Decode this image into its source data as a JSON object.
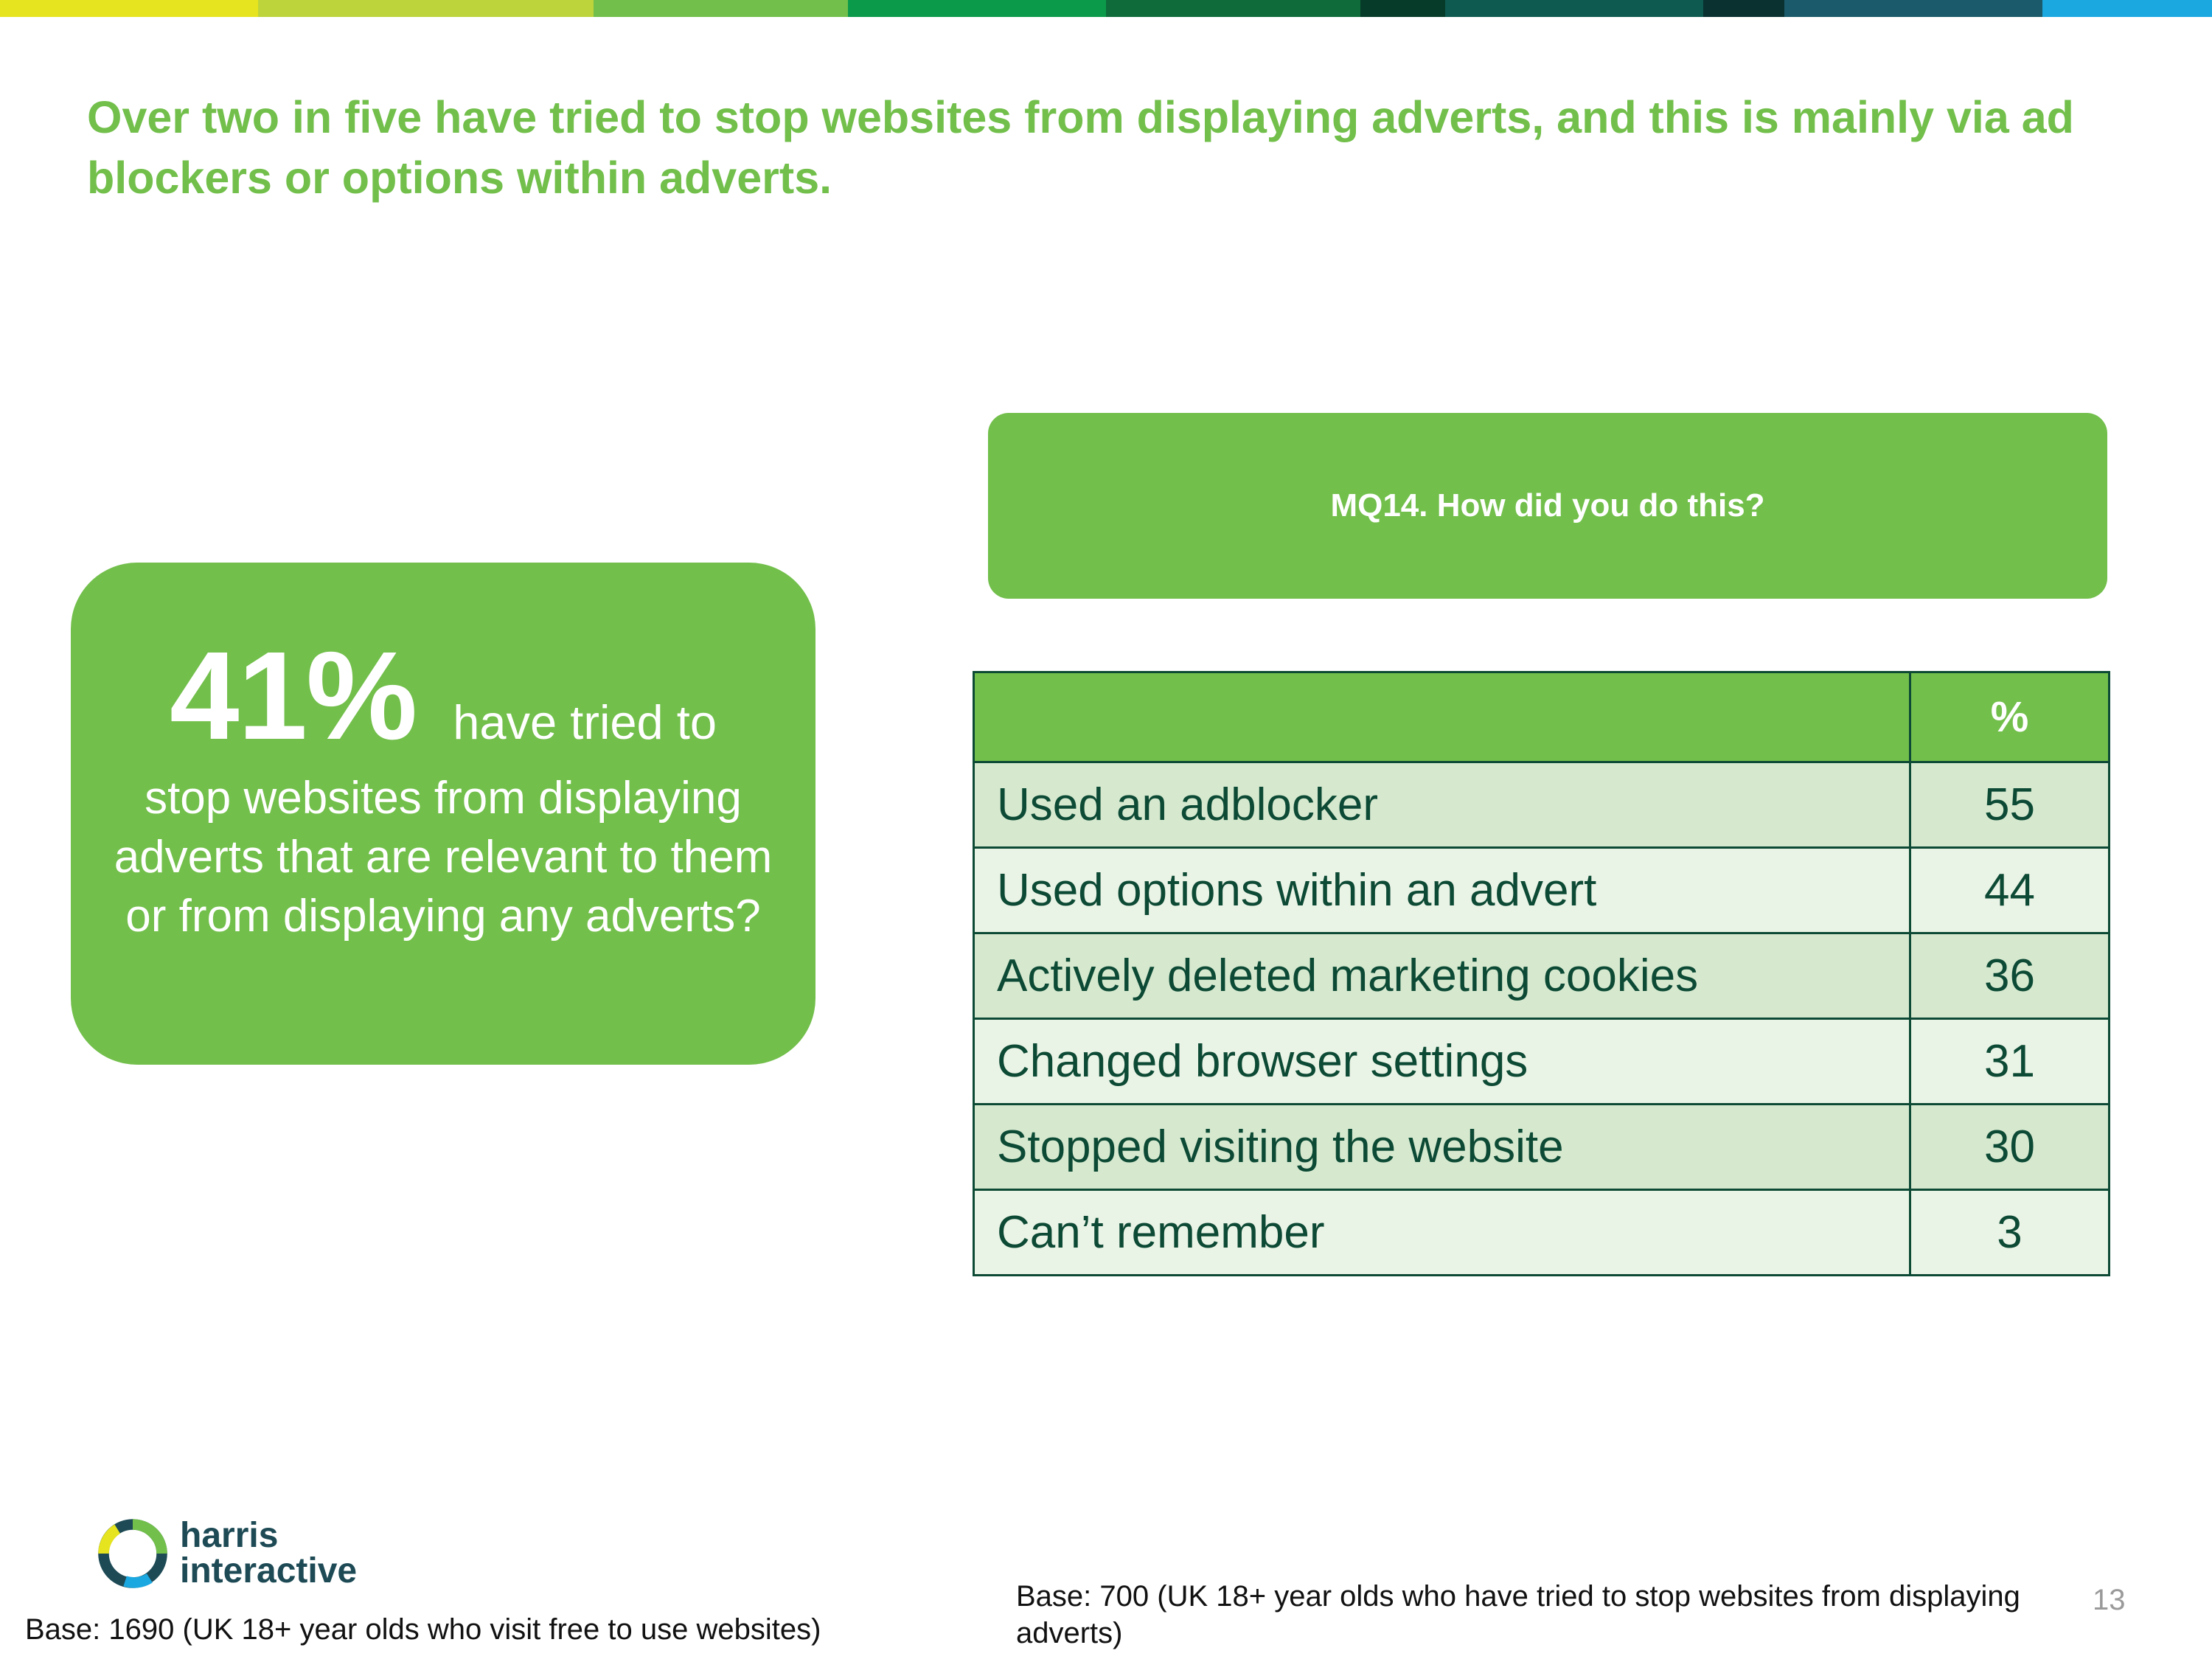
{
  "brand": {
    "strip_colors": [
      "#e6e41e",
      "#bdd43a",
      "#72bf4b",
      "#0b9a4a",
      "#0f6b3a",
      "#063b2a",
      "#0e5a50",
      "#0a3030",
      "#1a5a6a",
      "#1ba7e0"
    ],
    "title_color": "#72bf4b",
    "accent": "#72bf4b",
    "table_dark": "#0d4a35"
  },
  "title": "Over two in five have tried to stop websites from displaying adverts, and this is mainly via ad blockers or options within adverts.",
  "stat": {
    "figure": "41%",
    "lead": "have tried to",
    "rest": "stop websites from displaying adverts that are relevant to them or from displaying any adverts?"
  },
  "question": "MQ14. How did you do this?",
  "table": {
    "header_label": "",
    "header_value": "%",
    "rows": [
      {
        "label": "Used an adblocker",
        "value": "55"
      },
      {
        "label": "Used options within an advert",
        "value": "44"
      },
      {
        "label": "Actively deleted marketing cookies",
        "value": "36"
      },
      {
        "label": "Changed browser settings",
        "value": "31"
      },
      {
        "label": "Stopped visiting the website",
        "value": "30"
      },
      {
        "label": "Can’t remember",
        "value": "3"
      }
    ]
  },
  "logo": {
    "line1": "harris",
    "line2": "interactive",
    "icon": "harris-interactive-ring-logo"
  },
  "base_left": "Base: 1690 (UK 18+ year olds who visit free to use websites)",
  "base_right": "Base: 700 (UK 18+ year olds who have tried to stop websites from displaying adverts)",
  "page_number": "13"
}
